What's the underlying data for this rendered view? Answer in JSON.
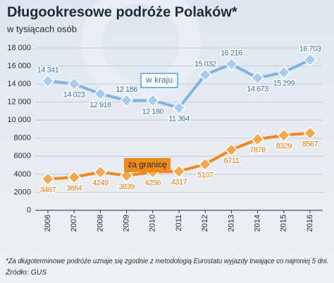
{
  "chart_data": {
    "type": "line",
    "title": "Długookresowe podróże Polaków*",
    "subtitle": "w tysiącach osób",
    "categories": [
      "2006",
      "2007",
      "2008",
      "2009",
      "2010",
      "2011",
      "2012",
      "2013",
      "2014",
      "2015",
      "2016"
    ],
    "series": [
      {
        "name": "w kraju",
        "color": "#7fb3e3",
        "values": [
          14341,
          14023,
          12916,
          12186,
          12180,
          11364,
          15032,
          16216,
          14673,
          15299,
          16703
        ],
        "value_labels": [
          "14 341",
          "14 023",
          "12 916",
          "12 186",
          "12 180",
          "11 364",
          "15 032",
          "16 216",
          "14 673",
          "15 299",
          "16 703"
        ]
      },
      {
        "name": "za granicę",
        "color": "#f0891c",
        "values": [
          3467,
          3664,
          4249,
          3839,
          4256,
          4317,
          5107,
          6711,
          7878,
          8329,
          8567
        ]
      }
    ],
    "ylim": [
      0,
      18000
    ],
    "yticks": [
      0,
      2000,
      4000,
      6000,
      8000,
      {
        "value": 10000,
        "label": "10 000"
      },
      {
        "value": 12000,
        "label": "12 000"
      },
      {
        "value": 14000,
        "label": "14 000"
      },
      {
        "value": 16000,
        "label": "16 000"
      },
      {
        "value": 18000,
        "label": "18 000"
      }
    ],
    "grid": true,
    "footnote": "*Za długoterminowe podróże uznaje się zgodnie z metodologią Eurostatu wyjazdy trwające co najmniej 5 dni.",
    "source": "Źródło: GUS"
  }
}
